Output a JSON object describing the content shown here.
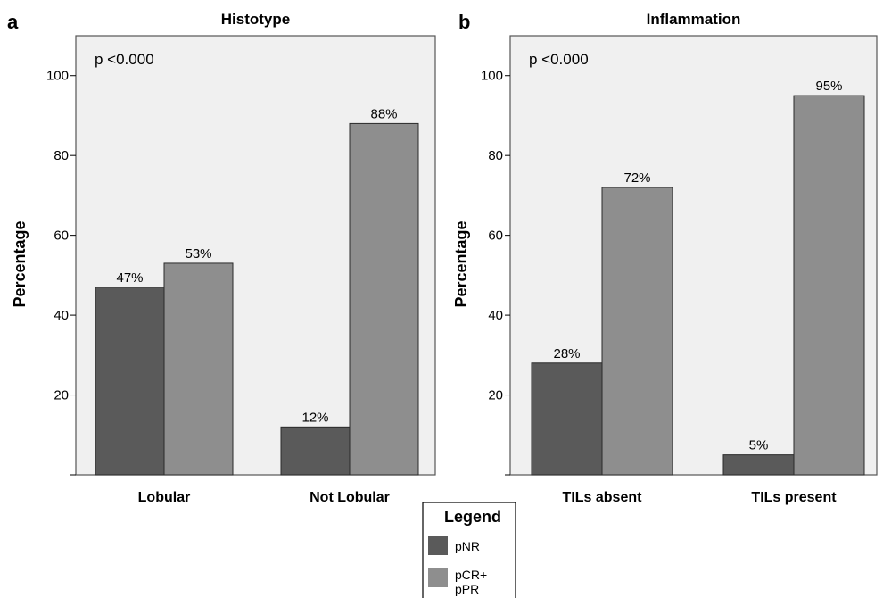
{
  "colors": {
    "pNR": "#5a5a5a",
    "pCR_pPR": "#8e8e8e",
    "plot_bg": "#f0f0f0",
    "frame": "#555555"
  },
  "legend": {
    "title": "Legend",
    "items": [
      {
        "label": "pNR",
        "color": "#5a5a5a"
      },
      {
        "label_lines": [
          "pCR+",
          "pPR"
        ],
        "color": "#8e8e8e"
      }
    ]
  },
  "chart_data": [
    {
      "panel": "a",
      "type": "bar",
      "title": "Histotype",
      "ylabel": "Percentage",
      "annotation": "p <0.000",
      "ylim": [
        0,
        110
      ],
      "yticks": [
        20,
        40,
        60,
        80,
        100
      ],
      "categories": [
        "Lobular",
        "Not Lobular"
      ],
      "series": [
        {
          "name": "pNR",
          "values": [
            47,
            12
          ],
          "labels": [
            "47%",
            "12%"
          ]
        },
        {
          "name": "pCR+ pPR",
          "values": [
            53,
            88
          ],
          "labels": [
            "53%",
            "88%"
          ]
        }
      ]
    },
    {
      "panel": "b",
      "type": "bar",
      "title": "Inflammation",
      "ylabel": "Percentage",
      "annotation": "p <0.000",
      "ylim": [
        0,
        110
      ],
      "yticks": [
        20,
        40,
        60,
        80,
        100
      ],
      "categories": [
        "TILs absent",
        "TILs present"
      ],
      "series": [
        {
          "name": "pNR",
          "values": [
            28,
            5
          ],
          "labels": [
            "28%",
            "5%"
          ]
        },
        {
          "name": "pCR+ pPR",
          "values": [
            72,
            95
          ],
          "labels": [
            "72%",
            "95%"
          ]
        }
      ]
    }
  ]
}
